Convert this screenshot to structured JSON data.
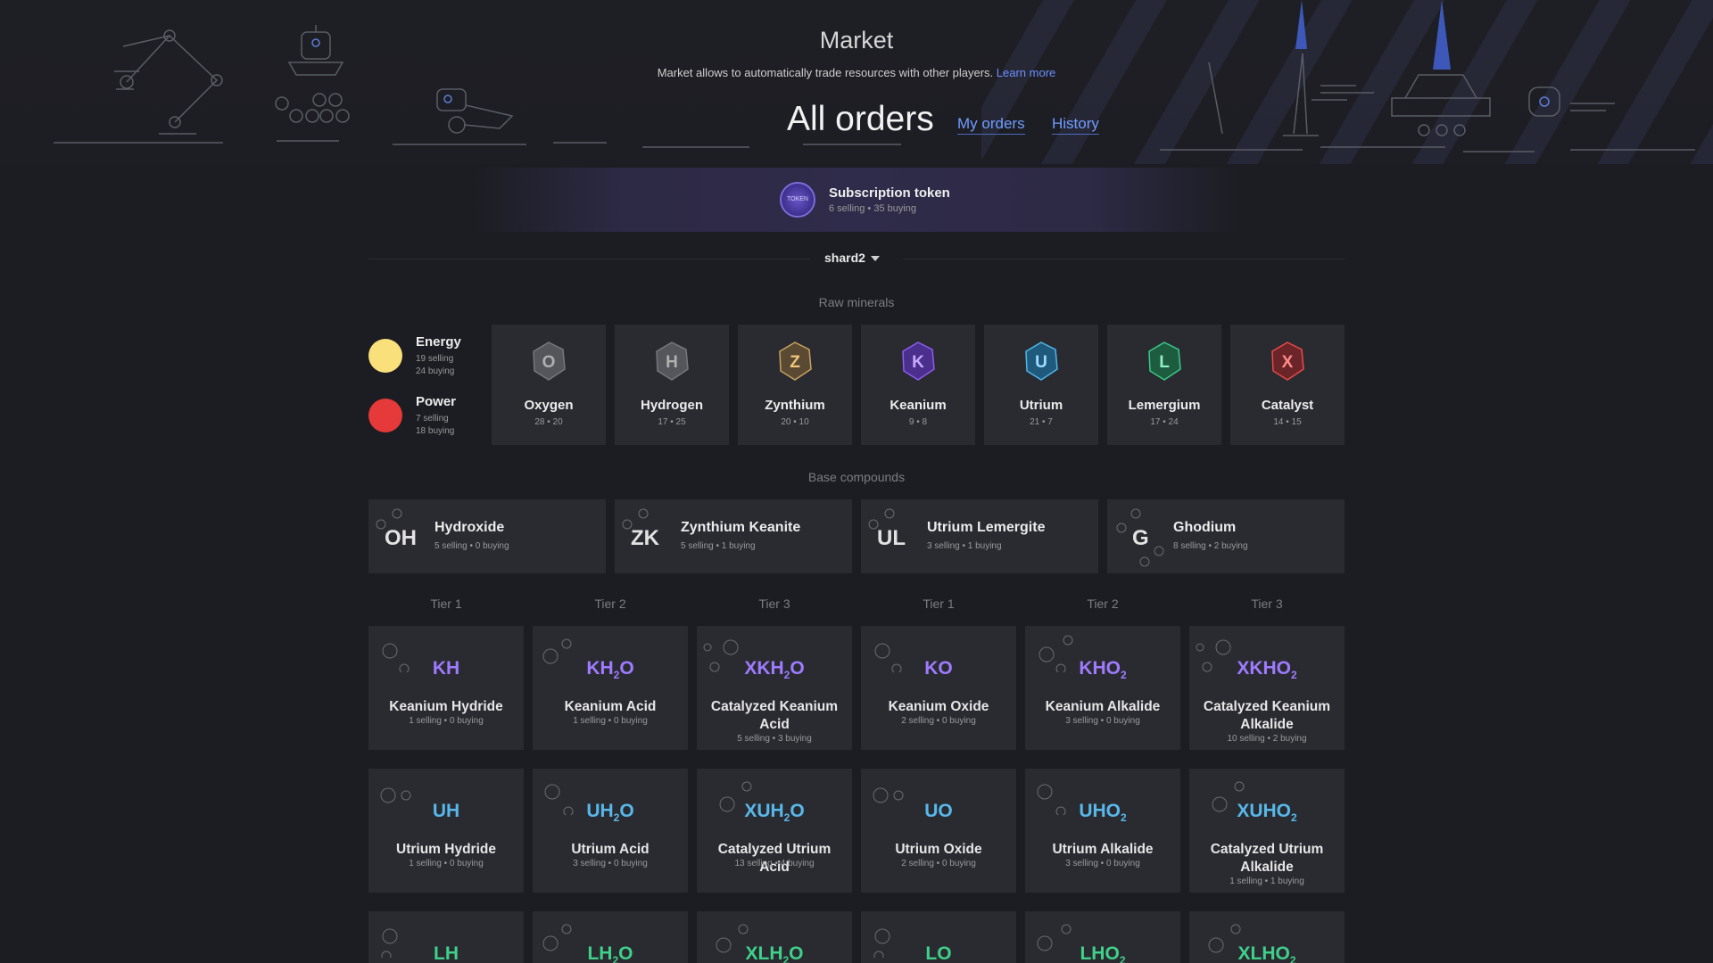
{
  "header": {
    "title": "Market",
    "subtitle": "Market allows to automatically trade resources with other players.",
    "learn_more": "Learn more",
    "orders_title": "All orders",
    "tabs": [
      "My orders",
      "History"
    ]
  },
  "token": {
    "icon_label": "TOKEN",
    "name": "Subscription token",
    "stats": "6 selling • 35 buying"
  },
  "shard": {
    "value": "shard2"
  },
  "sections": {
    "raw": "Raw minerals",
    "base": "Base compounds",
    "tiers": [
      "Tier 1",
      "Tier 2",
      "Tier 3",
      "Tier 1",
      "Tier 2",
      "Tier 3"
    ]
  },
  "energy": {
    "name": "Energy",
    "selling": "19 selling",
    "buying": "24 buying",
    "color": "#f9e07a"
  },
  "power": {
    "name": "Power",
    "selling": "7 selling",
    "buying": "18 buying",
    "color": "#e6393a"
  },
  "minerals": [
    {
      "letter": "O",
      "name": "Oxygen",
      "stats": "28  •  20",
      "color": "#8e8e8e"
    },
    {
      "letter": "H",
      "name": "Hydrogen",
      "stats": "17  •  25",
      "color": "#8e8e8e"
    },
    {
      "letter": "Z",
      "name": "Zynthium",
      "stats": "20  •  10",
      "color": "#f0c67a"
    },
    {
      "letter": "K",
      "name": "Keanium",
      "stats": "9  •  8",
      "color": "#8d5cf0"
    },
    {
      "letter": "U",
      "name": "Utrium",
      "stats": "21  •  7",
      "color": "#4fb6ea"
    },
    {
      "letter": "L",
      "name": "Lemergium",
      "stats": "17  •  24",
      "color": "#3bc987"
    },
    {
      "letter": "X",
      "name": "Catalyst",
      "stats": "14  •  15",
      "color": "#e84a4a"
    }
  ],
  "compounds": [
    {
      "sym": "OH",
      "name": "Hydroxide",
      "stats": "5 selling  •  0 buying"
    },
    {
      "sym": "ZK",
      "name": "Zynthium Keanite",
      "stats": "5 selling  •  1 buying"
    },
    {
      "sym": "UL",
      "name": "Utrium Lemergite",
      "stats": "3 selling  •  1 buying"
    },
    {
      "sym": "G",
      "name": "Ghodium",
      "stats": "8 selling  •  2 buying"
    }
  ],
  "boosts_k": [
    {
      "formula_a": "KH",
      "formula_sub": "",
      "formula_b": "",
      "name": "Keanium Hydride",
      "stats": "1 selling  •  0 buying"
    },
    {
      "formula_a": "KH",
      "formula_sub": "2",
      "formula_b": "O",
      "name": "Keanium Acid",
      "stats": "1 selling  •  0 buying"
    },
    {
      "formula_a": "XKH",
      "formula_sub": "2",
      "formula_b": "O",
      "name": "Catalyzed Keanium Acid",
      "stats": "5 selling  •  3 buying"
    },
    {
      "formula_a": "KO",
      "formula_sub": "",
      "formula_b": "",
      "name": "Keanium Oxide",
      "stats": "2 selling  •  0 buying"
    },
    {
      "formula_a": "KHO",
      "formula_sub": "2",
      "formula_b": "",
      "name": "Keanium Alkalide",
      "stats": "3 selling  •  0 buying"
    },
    {
      "formula_a": "XKHO",
      "formula_sub": "2",
      "formula_b": "",
      "name": "Catalyzed Keanium Alkalide",
      "stats": "10 selling  •  2 buying"
    }
  ],
  "boosts_u": [
    {
      "formula_a": "UH",
      "formula_sub": "",
      "formula_b": "",
      "name": "Utrium Hydride",
      "stats": "1 selling  •  0 buying"
    },
    {
      "formula_a": "UH",
      "formula_sub": "2",
      "formula_b": "O",
      "name": "Utrium Acid",
      "stats": "3 selling  •  0 buying"
    },
    {
      "formula_a": "XUH",
      "formula_sub": "2",
      "formula_b": "O",
      "name": "Catalyzed Utrium Acid",
      "stats": "13 selling  •  4 buying"
    },
    {
      "formula_a": "UO",
      "formula_sub": "",
      "formula_b": "",
      "name": "Utrium Oxide",
      "stats": "2 selling  •  0 buying"
    },
    {
      "formula_a": "UHO",
      "formula_sub": "2",
      "formula_b": "",
      "name": "Utrium Alkalide",
      "stats": "3 selling  •  0 buying"
    },
    {
      "formula_a": "XUHO",
      "formula_sub": "2",
      "formula_b": "",
      "name": "Catalyzed Utrium Alkalide",
      "stats": "1 selling  •  1 buying"
    }
  ],
  "boosts_l": [
    {
      "formula_a": "LH",
      "formula_sub": "",
      "formula_b": ""
    },
    {
      "formula_a": "LH",
      "formula_sub": "2",
      "formula_b": "O"
    },
    {
      "formula_a": "XLH",
      "formula_sub": "2",
      "formula_b": "O"
    },
    {
      "formula_a": "LO",
      "formula_sub": "",
      "formula_b": ""
    },
    {
      "formula_a": "LHO",
      "formula_sub": "2",
      "formula_b": ""
    },
    {
      "formula_a": "XLHO",
      "formula_sub": "2",
      "formula_b": ""
    }
  ]
}
